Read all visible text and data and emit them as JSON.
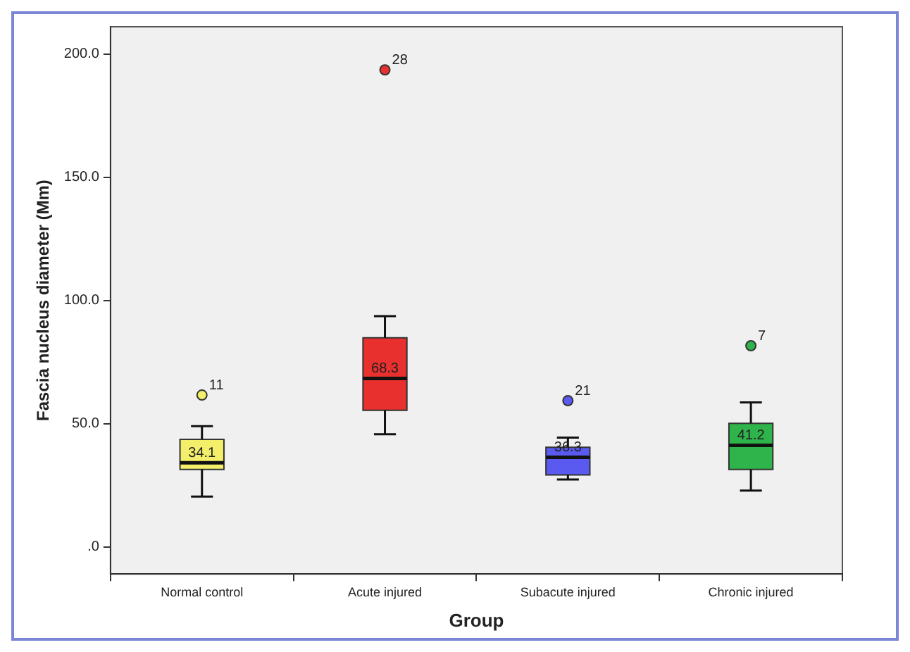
{
  "chart_data": {
    "type": "box",
    "xlabel": "Group",
    "ylabel": "Fascia nucleus diameter (Mm)",
    "categories": [
      "Normal control",
      "Acute injured",
      "Subacute injured",
      "Chronic injured"
    ],
    "colors": [
      "#f4ef6a",
      "#e8302e",
      "#5a5af0",
      "#2fb34b"
    ],
    "boxes": [
      {
        "low": 20.4,
        "q1": 31.4,
        "median": 34.1,
        "q3": 43.6,
        "high": 49.0,
        "outliers": [
          61.6
        ]
      },
      {
        "low": 45.7,
        "q1": 55.4,
        "median": 68.3,
        "q3": 84.8,
        "high": 93.6,
        "outliers": [
          193.5
        ]
      },
      {
        "low": 27.3,
        "q1": 29.2,
        "median": 36.3,
        "q3": 40.4,
        "high": 44.3,
        "outliers": [
          59.3
        ]
      },
      {
        "low": 22.8,
        "q1": 31.4,
        "median": 41.2,
        "q3": 50.1,
        "high": 58.6,
        "outliers": [
          81.6
        ]
      }
    ],
    "value_labels": [
      "34.1",
      "68.3",
      "36.3",
      "41.2"
    ],
    "annotations": [
      "11",
      "28",
      "21",
      "7"
    ],
    "ylim": [
      -11,
      211
    ],
    "yticks": [
      {
        "value": 0,
        "label": ".0"
      },
      {
        "value": 50,
        "label": "50.0"
      },
      {
        "value": 100,
        "label": "100.0"
      },
      {
        "value": 150,
        "label": "150.0"
      },
      {
        "value": 200,
        "label": "200.0"
      }
    ],
    "grid": false,
    "legend": false
  }
}
